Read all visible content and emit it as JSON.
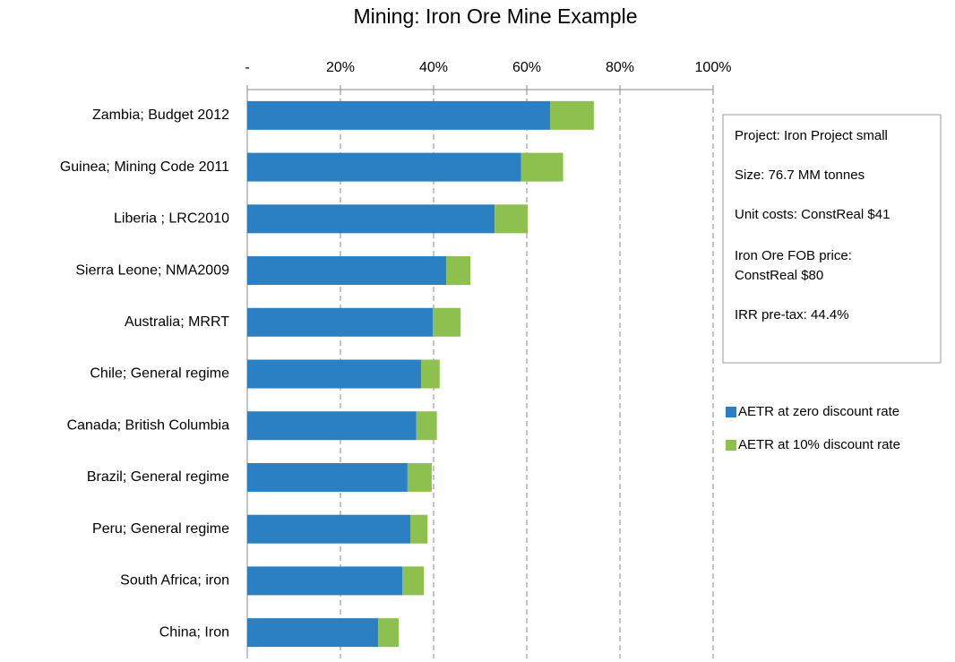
{
  "chart_data": {
    "type": "stacked_bar_horizontal",
    "title": "Mining: Iron Ore Mine Example",
    "categories": [
      "Zambia; Budget 2012",
      "Guinea; Mining Code 2011",
      "Liberia ; LRC2010",
      "Sierra Leone; NMA2009",
      "Australia; MRRT",
      "Chile; General regime",
      "Canada; British Columbia",
      "Brazil; General regime",
      "Peru; General regime",
      "South Africa; iron",
      "China; Iron"
    ],
    "series": [
      {
        "name": "AETR at zero discount rate",
        "color": "#2a80c3",
        "values": [
          65.0,
          58.8,
          53.1,
          42.7,
          39.8,
          37.3,
          36.3,
          34.4,
          35.0,
          33.3,
          28.1
        ]
      },
      {
        "name": "AETR at 10% discount rate",
        "color": "#8dc04f",
        "values": [
          9.4,
          9.0,
          7.1,
          5.2,
          6.0,
          4.0,
          4.4,
          5.2,
          3.7,
          4.6,
          4.4
        ]
      }
    ],
    "xlim": [
      0,
      100
    ],
    "xticks": [
      {
        "value": 0,
        "label": "-"
      },
      {
        "value": 20,
        "label": "20%"
      },
      {
        "value": 40,
        "label": "40%"
      },
      {
        "value": 60,
        "label": "60%"
      },
      {
        "value": 80,
        "label": "80%"
      },
      {
        "value": 100,
        "label": "100%"
      }
    ],
    "grid": true,
    "legend_position": "right",
    "info_box": [
      "Project: Iron Project small",
      "Size: 76.7 MM tonnes",
      "Unit costs: ConstReal $41",
      "Iron Ore FOB price:",
      "ConstReal $80",
      "IRR pre-tax: 44.4%"
    ]
  }
}
